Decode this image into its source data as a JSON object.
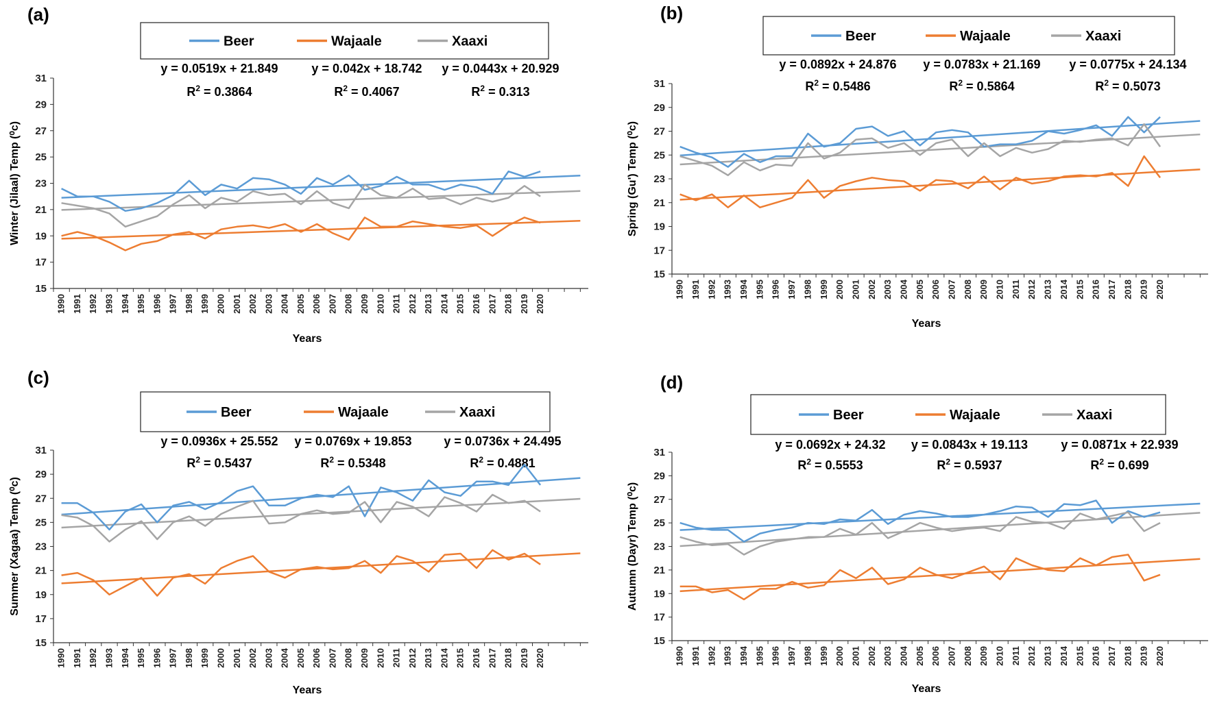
{
  "colors": {
    "Beer": "#5B9BD5",
    "Wajaale": "#ED7D31",
    "Xaaxi": "#A5A5A5"
  },
  "chart_data": [
    {
      "type": "line",
      "panel": "(a)",
      "xlabel": "Years",
      "ylabel": "Winter (Jilaal) Temp (⁰c)",
      "ylim": [
        15,
        31
      ],
      "yticks": [
        15,
        17,
        19,
        21,
        23,
        25,
        27,
        29,
        31
      ],
      "x": [
        1990,
        1991,
        1992,
        1993,
        1994,
        1995,
        1996,
        1997,
        1998,
        1999,
        2000,
        2001,
        2002,
        2003,
        2004,
        2005,
        2006,
        2007,
        2008,
        2009,
        2010,
        2011,
        2012,
        2013,
        2014,
        2015,
        2016,
        2017,
        2018,
        2019,
        2020
      ],
      "legend": [
        "Beer",
        "Wajaale",
        "Xaaxi"
      ],
      "series": [
        {
          "name": "Beer",
          "values": [
            22.6,
            22.0,
            22.0,
            21.6,
            20.9,
            21.1,
            21.5,
            22.1,
            23.2,
            22.1,
            22.9,
            22.6,
            23.4,
            23.3,
            22.9,
            22.2,
            23.4,
            22.9,
            23.6,
            22.5,
            22.8,
            23.5,
            22.9,
            22.9,
            22.5,
            22.9,
            22.7,
            22.2,
            23.9,
            23.5,
            23.9
          ]
        },
        {
          "name": "Wajaale",
          "values": [
            19.0,
            19.3,
            19.0,
            18.5,
            17.9,
            18.4,
            18.6,
            19.1,
            19.3,
            18.8,
            19.5,
            19.7,
            19.8,
            19.6,
            19.9,
            19.3,
            19.9,
            19.2,
            18.7,
            20.4,
            19.7,
            19.7,
            20.1,
            19.9,
            19.7,
            19.6,
            19.8,
            19.0,
            19.8,
            20.4,
            20.0
          ]
        },
        {
          "name": "Xaaxi",
          "values": [
            21.5,
            21.3,
            21.1,
            20.7,
            19.7,
            20.1,
            20.5,
            21.4,
            22.1,
            21.1,
            21.9,
            21.6,
            22.4,
            22.1,
            22.2,
            21.4,
            22.4,
            21.5,
            21.1,
            22.9,
            22.1,
            21.9,
            22.6,
            21.8,
            21.9,
            21.4,
            21.9,
            21.6,
            21.9,
            22.8,
            22.0
          ]
        }
      ],
      "trendlines": [
        {
          "name": "Beer",
          "slope": 0.0519,
          "intercept": 21.849
        },
        {
          "name": "Wajaale",
          "slope": 0.042,
          "intercept": 18.742
        },
        {
          "name": "Xaaxi",
          "slope": 0.0443,
          "intercept": 20.929
        }
      ],
      "equations": [
        {
          "eq": "y = 0.0519x + 21.849",
          "r2": "0.3864"
        },
        {
          "eq": "y = 0.042x + 18.742",
          "r2": "0.4067"
        },
        {
          "eq": "y = 0.0443x + 20.929",
          "r2": "0.313"
        }
      ]
    },
    {
      "type": "line",
      "panel": "(b)",
      "xlabel": "Years",
      "ylabel": "Spring (Gu') Temp (⁰c)",
      "ylim": [
        15,
        31
      ],
      "yticks": [
        15,
        17,
        19,
        21,
        23,
        25,
        27,
        29,
        31
      ],
      "x": [
        1990,
        1991,
        1992,
        1993,
        1994,
        1995,
        1996,
        1997,
        1998,
        1999,
        2000,
        2001,
        2002,
        2003,
        2004,
        2005,
        2006,
        2007,
        2008,
        2009,
        2010,
        2011,
        2012,
        2013,
        2014,
        2015,
        2016,
        2017,
        2018,
        2019,
        2020
      ],
      "legend": [
        "Beer",
        "Wajaale",
        "Xaaxi"
      ],
      "series": [
        {
          "name": "Beer",
          "values": [
            25.7,
            25.2,
            24.8,
            24.0,
            25.1,
            24.4,
            24.9,
            24.9,
            26.8,
            25.7,
            26.0,
            27.2,
            27.4,
            26.6,
            27.0,
            25.8,
            26.9,
            27.1,
            26.9,
            25.7,
            25.9,
            25.9,
            26.2,
            27.0,
            26.8,
            27.1,
            27.5,
            26.6,
            28.2,
            26.9,
            28.2
          ]
        },
        {
          "name": "Wajaale",
          "values": [
            21.7,
            21.2,
            21.7,
            20.6,
            21.6,
            20.6,
            21.0,
            21.4,
            22.9,
            21.4,
            22.4,
            22.8,
            23.1,
            22.9,
            22.8,
            22.0,
            22.9,
            22.8,
            22.2,
            23.2,
            22.1,
            23.1,
            22.6,
            22.8,
            23.2,
            23.3,
            23.2,
            23.5,
            22.4,
            24.9,
            23.1
          ]
        },
        {
          "name": "Xaaxi",
          "values": [
            24.9,
            24.5,
            24.1,
            23.3,
            24.4,
            23.7,
            24.2,
            24.1,
            26.0,
            24.7,
            25.2,
            26.3,
            26.4,
            25.6,
            26.0,
            25.0,
            26.0,
            26.3,
            24.9,
            26.0,
            24.9,
            25.6,
            25.2,
            25.5,
            26.2,
            26.1,
            26.3,
            26.4,
            25.8,
            27.6,
            25.7
          ]
        }
      ],
      "trendlines": [
        {
          "name": "Beer",
          "slope": 0.0892,
          "intercept": 24.876
        },
        {
          "name": "Wajaale",
          "slope": 0.0783,
          "intercept": 21.169
        },
        {
          "name": "Xaaxi",
          "slope": 0.0775,
          "intercept": 24.134
        }
      ],
      "equations": [
        {
          "eq": "y = 0.0892x + 24.876",
          "r2": "0.5486"
        },
        {
          "eq": "y = 0.0783x + 21.169",
          "r2": "0.5864"
        },
        {
          "eq": "y = 0.0775x + 24.134",
          "r2": "0.5073"
        }
      ]
    },
    {
      "type": "line",
      "panel": "(c)",
      "xlabel": "Years",
      "ylabel": "Summer (Xagaa) Temp (⁰c)",
      "ylim": [
        15,
        31
      ],
      "yticks": [
        15,
        17,
        19,
        21,
        23,
        25,
        27,
        29,
        31
      ],
      "x": [
        1990,
        1991,
        1992,
        1993,
        1994,
        1995,
        1996,
        1997,
        1998,
        1999,
        2000,
        2001,
        2002,
        2003,
        2004,
        2005,
        2006,
        2007,
        2008,
        2009,
        2010,
        2011,
        2012,
        2013,
        2014,
        2015,
        2016,
        2017,
        2018,
        2019,
        2020
      ],
      "legend": [
        "Beer",
        "Wajaale",
        "Xaaxi"
      ],
      "series": [
        {
          "name": "Beer",
          "values": [
            26.6,
            26.6,
            25.8,
            24.4,
            25.9,
            26.5,
            25.0,
            26.4,
            26.7,
            26.1,
            26.7,
            27.6,
            28.0,
            26.4,
            26.4,
            27.0,
            27.3,
            27.1,
            28.0,
            25.5,
            27.9,
            27.5,
            26.8,
            28.5,
            27.5,
            27.2,
            28.4,
            28.4,
            28.1,
            29.8,
            28.1
          ]
        },
        {
          "name": "Wajaale",
          "values": [
            20.6,
            20.8,
            20.2,
            19.0,
            19.7,
            20.4,
            18.9,
            20.4,
            20.7,
            19.9,
            21.2,
            21.8,
            22.2,
            20.9,
            20.4,
            21.1,
            21.3,
            21.1,
            21.2,
            21.8,
            20.8,
            22.2,
            21.8,
            20.9,
            22.3,
            22.4,
            21.2,
            22.7,
            21.9,
            22.4,
            21.5
          ]
        },
        {
          "name": "Xaaxi",
          "values": [
            25.6,
            25.4,
            24.7,
            23.4,
            24.4,
            25.1,
            23.6,
            25.0,
            25.5,
            24.7,
            25.7,
            26.3,
            26.8,
            24.9,
            25.0,
            25.7,
            26.0,
            25.7,
            25.8,
            26.7,
            25.0,
            26.7,
            26.3,
            25.5,
            27.1,
            26.6,
            25.9,
            27.3,
            26.6,
            26.8,
            25.9
          ]
        }
      ],
      "trendlines": [
        {
          "name": "Beer",
          "slope": 0.0936,
          "intercept": 25.552
        },
        {
          "name": "Wajaale",
          "slope": 0.0769,
          "intercept": 19.853
        },
        {
          "name": "Xaaxi",
          "slope": 0.0736,
          "intercept": 24.495
        }
      ],
      "equations": [
        {
          "eq": "y = 0.0936x + 25.552",
          "r2": "0.5437"
        },
        {
          "eq": "y = 0.0769x + 19.853",
          "r2": "0.5348"
        },
        {
          "eq": "y = 0.0736x + 24.495",
          "r2": "0.4881"
        }
      ]
    },
    {
      "type": "line",
      "panel": "(d)",
      "xlabel": "Years",
      "ylabel": "Autumn (Dayr) Temp (⁰c)",
      "ylim": [
        15,
        31
      ],
      "yticks": [
        15,
        17,
        19,
        21,
        23,
        25,
        27,
        29,
        31
      ],
      "x": [
        1990,
        1991,
        1992,
        1993,
        1994,
        1995,
        1996,
        1997,
        1998,
        1999,
        2000,
        2001,
        2002,
        2003,
        2004,
        2005,
        2006,
        2007,
        2008,
        2009,
        2010,
        2011,
        2012,
        2013,
        2014,
        2015,
        2016,
        2017,
        2018,
        2019,
        2020
      ],
      "legend": [
        "Beer",
        "Wajaale",
        "Xaaxi"
      ],
      "series": [
        {
          "name": "Beer",
          "values": [
            25.0,
            24.6,
            24.4,
            24.4,
            23.4,
            24.1,
            24.4,
            24.6,
            25.0,
            24.9,
            25.3,
            25.2,
            26.1,
            24.9,
            25.7,
            26.0,
            25.8,
            25.5,
            25.5,
            25.7,
            26.0,
            26.4,
            26.3,
            25.5,
            26.6,
            26.5,
            26.9,
            25.0,
            26.0,
            25.5,
            25.9
          ]
        },
        {
          "name": "Wajaale",
          "values": [
            19.6,
            19.6,
            19.1,
            19.3,
            18.5,
            19.4,
            19.4,
            20.0,
            19.5,
            19.7,
            21.0,
            20.3,
            21.2,
            19.8,
            20.2,
            21.2,
            20.6,
            20.3,
            20.8,
            21.3,
            20.2,
            22.0,
            21.4,
            21.0,
            20.9,
            22.0,
            21.4,
            22.1,
            22.3,
            20.1,
            20.6
          ]
        },
        {
          "name": "Xaaxi",
          "values": [
            23.8,
            23.4,
            23.1,
            23.2,
            22.3,
            23.0,
            23.4,
            23.6,
            23.8,
            23.8,
            24.5,
            24.0,
            25.0,
            23.7,
            24.3,
            25.0,
            24.6,
            24.3,
            24.5,
            24.6,
            24.3,
            25.5,
            25.1,
            25.0,
            24.5,
            25.8,
            25.3,
            25.6,
            25.9,
            24.3,
            25.0
          ]
        }
      ],
      "trendlines": [
        {
          "name": "Beer",
          "slope": 0.0692,
          "intercept": 24.32
        },
        {
          "name": "Wajaale",
          "slope": 0.0843,
          "intercept": 19.113
        },
        {
          "name": "Xaaxi",
          "slope": 0.0871,
          "intercept": 22.939
        }
      ],
      "equations": [
        {
          "eq": "y = 0.0692x + 24.32",
          "r2": "0.5553"
        },
        {
          "eq": "y = 0.0843x + 19.113",
          "r2": "0.5937"
        },
        {
          "eq": "y = 0.0871x + 22.939",
          "r2": "0.699"
        }
      ]
    }
  ]
}
